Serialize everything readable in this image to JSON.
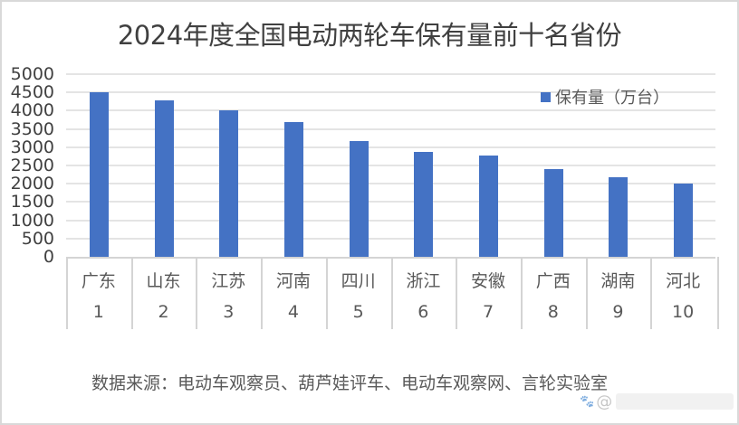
{
  "chart_data": {
    "type": "bar",
    "title": "2024年度全国电动两轮车保有量前十名省份",
    "categories": [
      "广东",
      "山东",
      "江苏",
      "河南",
      "四川",
      "浙江",
      "安徽",
      "广西",
      "湖南",
      "河北"
    ],
    "ranks": [
      "1",
      "2",
      "3",
      "4",
      "5",
      "6",
      "7",
      "8",
      "9",
      "10"
    ],
    "series": [
      {
        "name": "保有量（万台）",
        "values": [
          4500,
          4280,
          4000,
          3680,
          3180,
          2880,
          2780,
          2390,
          2180,
          2000
        ],
        "color": "#4472c4"
      }
    ],
    "xlabel": "",
    "ylabel": "",
    "ylim": [
      0,
      5000
    ],
    "yticks": [
      "5000",
      "4500",
      "4000",
      "3500",
      "3000",
      "2500",
      "2000",
      "1500",
      "1000",
      "500",
      "0"
    ],
    "grid": true,
    "legend_position": "top-right"
  },
  "legend": {
    "label": "保有量（万台）"
  },
  "footer": {
    "source": "数据来源：电动车观察员、葫芦娃评车、电动车观察网、言轮实验室"
  },
  "watermark": {
    "at": "@"
  }
}
